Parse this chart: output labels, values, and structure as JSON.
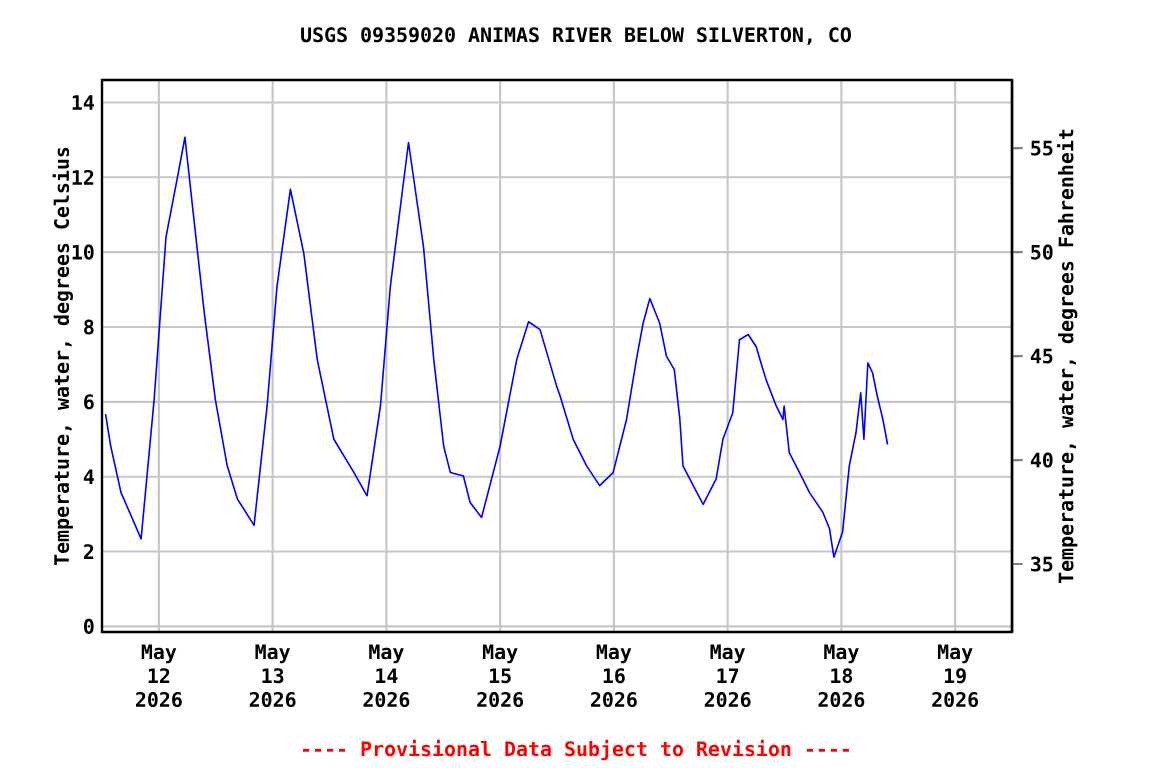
{
  "chart_data": {
    "type": "line",
    "title": "USGS 09359020 ANIMAS RIVER BELOW SILVERTON, CO",
    "ylabel": "Temperature, water, degrees Celsius",
    "y2label": "Temperature, water, degrees Fahrenheit",
    "annotations": [
      "---- Provisional Data Subject to Revision ----"
    ],
    "x": [
      "2026-05-11T12:45",
      "2026-05-11T13:50",
      "2026-05-11T16:00",
      "2026-05-11T20:15",
      "2026-05-11T23:00",
      "2026-05-12T01:30",
      "2026-05-12T03:55",
      "2026-05-12T05:30",
      "2026-05-12T07:25",
      "2026-05-12T09:35",
      "2026-05-12T11:55",
      "2026-05-12T14:25",
      "2026-05-12T16:35",
      "2026-05-12T20:05",
      "2026-05-12T22:50",
      "2026-05-13T00:55",
      "2026-05-13T03:45",
      "2026-05-13T06:35",
      "2026-05-13T09:25",
      "2026-05-13T12:55",
      "2026-05-13T17:10",
      "2026-05-13T19:55",
      "2026-05-13T22:45",
      "2026-05-14T00:50",
      "2026-05-14T04:40",
      "2026-05-14T07:50",
      "2026-05-14T10:00",
      "2026-05-14T12:05",
      "2026-05-14T13:30",
      "2026-05-14T16:15",
      "2026-05-14T17:40",
      "2026-05-14T20:05",
      "2026-05-15T00:00",
      "2026-05-15T03:30",
      "2026-05-15T06:00",
      "2026-05-15T08:25",
      "2026-05-15T11:55",
      "2026-05-15T12:40",
      "2026-05-15T15:25",
      "2026-05-15T18:15",
      "2026-05-15T21:00",
      "2026-05-15T23:50",
      "2026-05-16T02:40",
      "2026-05-16T04:45",
      "2026-05-16T06:10",
      "2026-05-16T07:35",
      "2026-05-16T09:40",
      "2026-05-16T11:05",
      "2026-05-16T12:45",
      "2026-05-16T13:55",
      "2026-05-16T14:35",
      "2026-05-16T16:45",
      "2026-05-16T18:50",
      "2026-05-16T21:35",
      "2026-05-16T23:00",
      "2026-05-17T01:05",
      "2026-05-17T02:30",
      "2026-05-17T04:20",
      "2026-05-17T06:00",
      "2026-05-17T08:05",
      "2026-05-17T10:15",
      "2026-05-17T11:40",
      "2026-05-17T11:55",
      "2026-05-17T13:00",
      "2026-05-17T15:10",
      "2026-05-17T17:15",
      "2026-05-17T20:05",
      "2026-05-17T21:30",
      "2026-05-17T22:25",
      "2026-05-18T00:15",
      "2026-05-18T01:40",
      "2026-05-18T03:05",
      "2026-05-18T04:05",
      "2026-05-18T04:45",
      "2026-05-18T05:35",
      "2026-05-18T06:35",
      "2026-05-18T07:35",
      "2026-05-18T08:45",
      "2026-05-18T09:45"
    ],
    "series": [
      {
        "color": "#0000ff",
        "values": [
          5.67,
          4.82,
          3.58,
          2.34,
          6.06,
          10.4,
          12.0,
          13.07,
          10.85,
          8.37,
          6.06,
          4.29,
          3.4,
          2.7,
          5.89,
          9.08,
          11.68,
          9.96,
          7.13,
          5.0,
          4.11,
          3.49,
          5.89,
          9.08,
          12.93,
          10.14,
          7.13,
          4.82,
          4.11,
          4.02,
          3.31,
          2.91,
          4.82,
          7.13,
          8.14,
          7.93,
          6.42,
          6.15,
          5.0,
          4.29,
          3.76,
          4.11,
          5.53,
          7.13,
          8.1,
          8.76,
          8.1,
          7.22,
          6.86,
          5.53,
          4.29,
          3.76,
          3.26,
          3.94,
          5.0,
          5.71,
          7.66,
          7.8,
          7.48,
          6.6,
          5.89,
          5.53,
          5.89,
          4.64,
          4.11,
          3.58,
          3.05,
          2.61,
          1.85,
          2.52,
          4.29,
          5.18,
          6.24,
          5.0,
          7.04,
          6.77,
          6.15,
          5.53,
          4.86
        ]
      }
    ],
    "xlim": [
      "2026-05-11T12:00",
      "2026-05-19T12:00"
    ],
    "xticks": [
      {
        "value": "2026-05-12",
        "label": "May 12 2026"
      },
      {
        "value": "2026-05-13",
        "label": "May 13 2026"
      },
      {
        "value": "2026-05-14",
        "label": "May 14 2026"
      },
      {
        "value": "2026-05-15",
        "label": "May 15 2026"
      },
      {
        "value": "2026-05-16",
        "label": "May 16 2026"
      },
      {
        "value": "2026-05-17",
        "label": "May 17 2026"
      },
      {
        "value": "2026-05-18",
        "label": "May 18 2026"
      },
      {
        "value": "2026-05-19",
        "label": "May 19 2026"
      }
    ],
    "ylim": [
      -0.15,
      14.6
    ],
    "yticks": [
      0,
      2,
      4,
      6,
      8,
      10,
      12,
      14
    ],
    "y2lim": [
      31.73,
      58.28
    ],
    "y2ticks": [
      35,
      40,
      45,
      50,
      55
    ],
    "grid": true,
    "marker": "none",
    "line_style": "solid"
  }
}
